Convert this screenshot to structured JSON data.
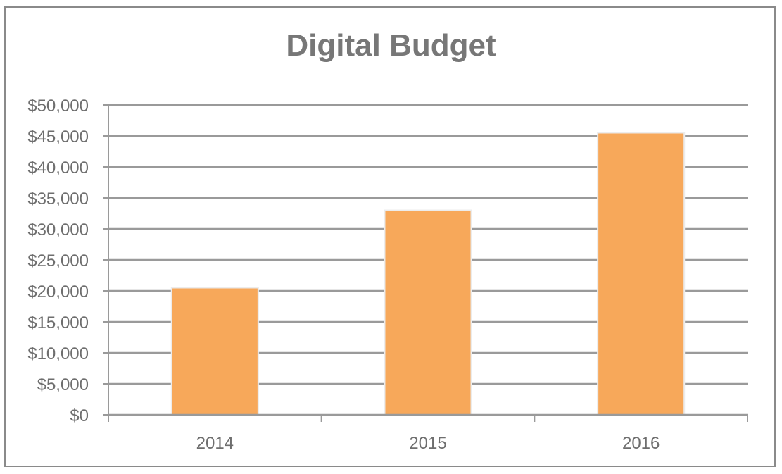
{
  "chart_data": {
    "type": "bar",
    "title": "Digital Budget",
    "categories": [
      "2014",
      "2015",
      "2016"
    ],
    "values": [
      20400,
      32900,
      45400
    ],
    "ylim": [
      0,
      50000
    ],
    "yticks": [
      0,
      5000,
      10000,
      15000,
      20000,
      25000,
      30000,
      35000,
      40000,
      45000,
      50000
    ],
    "ytick_labels": [
      "$0",
      "$5,000",
      "$10,000",
      "$15,000",
      "$20,000",
      "$25,000",
      "$30,000",
      "$35,000",
      "$40,000",
      "$45,000",
      "$50,000"
    ],
    "xlabel": "",
    "ylabel": "",
    "grid": true,
    "legend": "none",
    "colors": {
      "bar": "#f7a85a",
      "grid": "#9a9a9a",
      "text": "#6e6e6e",
      "title": "#777777"
    }
  }
}
